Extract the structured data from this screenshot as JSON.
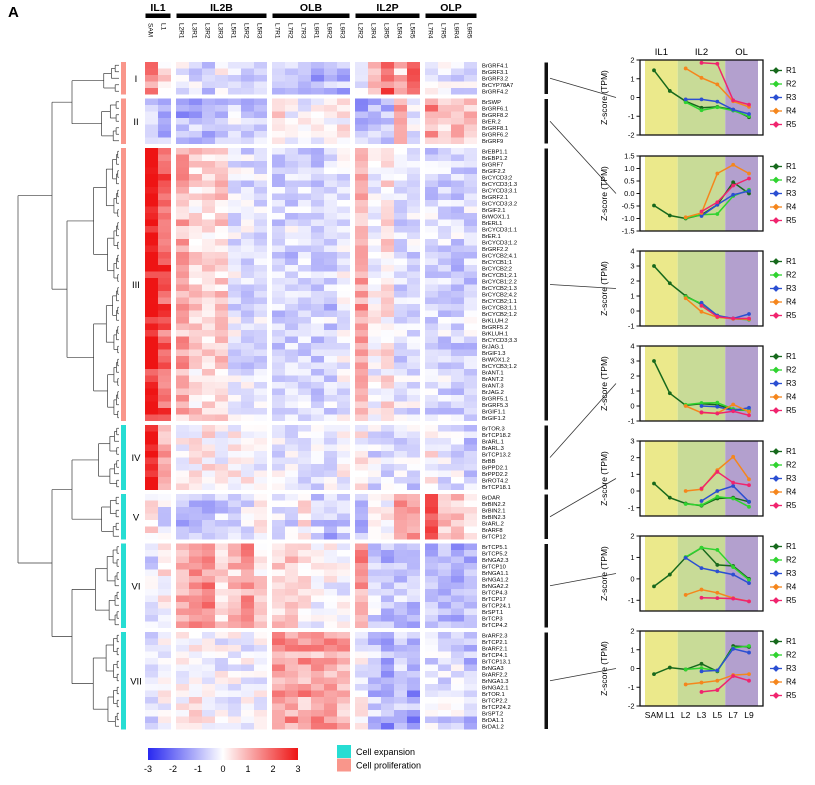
{
  "panel_label": "A",
  "heatmap": {
    "leaf_order": [
      "SAM",
      "L1",
      "L2",
      "L3",
      "L5",
      "L7",
      "L9"
    ],
    "column_groups": [
      {
        "label": "IL1",
        "columns": [
          {
            "id": "SAM",
            "leaf": "SAM",
            "region": "R1"
          },
          {
            "id": "L1",
            "leaf": "L1",
            "region": "R1"
          }
        ]
      },
      {
        "label": "IL2B",
        "columns": [
          {
            "id": "L2R1",
            "leaf": "L2",
            "region": "R1"
          },
          {
            "id": "L3R1",
            "leaf": "L3",
            "region": "R1"
          },
          {
            "id": "L3R2",
            "leaf": "L3",
            "region": "R2"
          },
          {
            "id": "L3R3",
            "leaf": "L3",
            "region": "R3"
          },
          {
            "id": "L5R1",
            "leaf": "L5",
            "region": "R1"
          },
          {
            "id": "L5R2",
            "leaf": "L5",
            "region": "R2"
          },
          {
            "id": "L5R3",
            "leaf": "L5",
            "region": "R3"
          }
        ]
      },
      {
        "label": "OLB",
        "columns": [
          {
            "id": "L7R1",
            "leaf": "L7",
            "region": "R1"
          },
          {
            "id": "L7R2",
            "leaf": "L7",
            "region": "R2"
          },
          {
            "id": "L7R3",
            "leaf": "L7",
            "region": "R3"
          },
          {
            "id": "L9R1",
            "leaf": "L9",
            "region": "R1"
          },
          {
            "id": "L9R2",
            "leaf": "L9",
            "region": "R2"
          },
          {
            "id": "L9R3",
            "leaf": "L9",
            "region": "R3"
          }
        ]
      },
      {
        "label": "IL2P",
        "columns": [
          {
            "id": "L2R2",
            "leaf": "L2",
            "region": "R2"
          },
          {
            "id": "L3R4",
            "leaf": "L3",
            "region": "R4"
          },
          {
            "id": "L3R5",
            "leaf": "L3",
            "region": "R5"
          },
          {
            "id": "L5R4",
            "leaf": "L5",
            "region": "R4"
          },
          {
            "id": "L5R5",
            "leaf": "L5",
            "region": "R5"
          }
        ]
      },
      {
        "label": "OLP",
        "columns": [
          {
            "id": "L7R4",
            "leaf": "L7",
            "region": "R4"
          },
          {
            "id": "L7R5",
            "leaf": "L7",
            "region": "R5"
          },
          {
            "id": "L9R4",
            "leaf": "L9",
            "region": "R4"
          },
          {
            "id": "L9R5",
            "leaf": "L9",
            "region": "R5"
          }
        ]
      }
    ],
    "clusters": [
      {
        "numeral": "I",
        "type": "proliferation",
        "genes": [
          "BrGRF4.1",
          "BrGRF3.1",
          "BrGRF3.2",
          "BrCYP78A7",
          "BrGRF4.2"
        ]
      },
      {
        "numeral": "II",
        "type": "proliferation",
        "genes": [
          "BrSWP",
          "BrGRF6.1",
          "BrGRF8.2",
          "BrER.2",
          "BrGRF8.1",
          "BrGRF6.2",
          "BrGRF9"
        ]
      },
      {
        "numeral": "III",
        "type": "proliferation",
        "genes": [
          "BrEBP1.1",
          "BrEBP1.2",
          "BrGRF7",
          "BrGIF2.2",
          "BrCYCD3;2",
          "BrCYCD3;1.3",
          "BrCYCD3;3.1",
          "BrGRF2.1",
          "BrCYCD3;3.2",
          "BrGIF2.1",
          "BrWOX1.1",
          "BrERL1",
          "BrCYCD3;1.1",
          "BrER.1",
          "BrCYCD3;1.2",
          "BrGRF2.2",
          "BrCYCB2;4.1",
          "BrCYCB1;1",
          "BrCYCB2;2",
          "BrCYCB1;2.1",
          "BrCYCB1;2.2",
          "BrCYCB2;1.3",
          "BrCYCB2;4.2",
          "BrCYCB2;1.1",
          "BrCYCB3;1.1",
          "BrCYCB2;1.2",
          "BrKLUH.2",
          "BrGRF5.2",
          "BrKLUH.1",
          "BrCYCD3;3.3",
          "BrJAG.1",
          "BrGIF1.3",
          "BrWOX1.2",
          "BrCYCB3;1.2",
          "BrANT.1",
          "BrANT.2",
          "BrANT.3",
          "BrJAG.2",
          "BrGRF5.1",
          "BrGRF5.3",
          "BrGIF1.1",
          "BrGIF1.2"
        ]
      },
      {
        "numeral": "IV",
        "type": "expansion",
        "genes": [
          "BrTOR.3",
          "BrTCP18.2",
          "BrARL.1",
          "BrARL.3",
          "BrTCP13.2",
          "BrBB",
          "BrPPD2.1",
          "BrPPD2.2",
          "BrROT4.2",
          "BrTCP18.1"
        ]
      },
      {
        "numeral": "V",
        "type": "expansion",
        "genes": [
          "BrDAR",
          "BrBIN2.2",
          "BrBIN2.1",
          "BrBIN2.3",
          "BrARL.2",
          "BrARF8",
          "BrTCP12"
        ]
      },
      {
        "numeral": "VI",
        "type": "expansion",
        "genes": [
          "BrTCP5.1",
          "BrTCP5.2",
          "BrNGA2.3",
          "BrTCP10",
          "BrNGA1.1",
          "BrNGA1.2",
          "BrNGA2.2",
          "BrTCP4.3",
          "BrTCP17",
          "BrTCP24.1",
          "BrSPT.1",
          "BrTCP3",
          "BrTCP4.2"
        ]
      },
      {
        "numeral": "VII",
        "type": "expansion",
        "genes": [
          "BrARF2.3",
          "BrTCP2.1",
          "BrARF2.1",
          "BrTCP4.1",
          "BrTCP13.1",
          "BrNGA3",
          "BrARF2.2",
          "BrNGA1.3",
          "BrNGA2.1",
          "BrTOR.1",
          "BrTCP2.2",
          "BrTCP24.2",
          "BrSPT.2",
          "BrDA1.1",
          "BrDA1.2"
        ]
      }
    ],
    "cluster_type_colors": {
      "proliferation": "#f9968b",
      "expansion": "#27ddd3"
    },
    "colorbar": {
      "min": -3,
      "max": 3,
      "ticks": [
        -3,
        -2,
        -1,
        0,
        1,
        2,
        3
      ],
      "negative_color": "#2828f0",
      "positive_color": "#ee1414"
    },
    "type_legend": [
      {
        "label": "Cell expansion",
        "color": "#27ddd3"
      },
      {
        "label": "Cell proliferation",
        "color": "#f9968b"
      }
    ]
  },
  "chart_data": {
    "type": "line",
    "note": "Seven Z-score(TPM) line panels, one per heatmap cluster I-VII; x = leaf stage; heatmap cells are cluster profile values per (leaf, region).",
    "x": [
      "SAM",
      "L1",
      "L2",
      "L3",
      "L5",
      "L7",
      "L9"
    ],
    "region_headers": [
      "IL1",
      "IL2",
      "OL"
    ],
    "bands": [
      {
        "label": "IL1",
        "from": "SAM",
        "to": "L1",
        "color": "#ebe98b"
      },
      {
        "label": "IL2",
        "from": "L2",
        "to": "L5",
        "color": "#c8db97"
      },
      {
        "label": "OL",
        "from": "L7",
        "to": "L9",
        "color": "#b3a0ce"
      }
    ],
    "series_colors": {
      "R1": "#17691c",
      "R2": "#2fd32f",
      "R3": "#2b4fd2",
      "R4": "#f5861c",
      "R5": "#f0246e"
    },
    "legend_labels": [
      "R1",
      "R2",
      "R3",
      "R4",
      "R5"
    ],
    "ylabel": "Z-score (TPM)",
    "zscore_plots": [
      {
        "cluster": "I",
        "ylim": [
          -2,
          2
        ],
        "yticks": [
          2,
          1,
          0,
          -1,
          -2
        ],
        "series": [
          {
            "name": "R1",
            "values": [
              1.45,
              0.35,
              -0.2,
              -0.55,
              -0.5,
              -0.65,
              -1.05
            ]
          },
          {
            "name": "R2",
            "values": [
              null,
              null,
              -0.25,
              -0.68,
              -0.52,
              -0.7,
              -1.0
            ]
          },
          {
            "name": "R3",
            "values": [
              null,
              null,
              -0.1,
              -0.1,
              -0.22,
              -0.65,
              -0.88
            ]
          },
          {
            "name": "R4",
            "values": [
              null,
              null,
              1.55,
              1.05,
              0.7,
              -0.2,
              -0.5
            ]
          },
          {
            "name": "R5",
            "values": [
              null,
              null,
              null,
              1.85,
              1.8,
              -0.15,
              -0.38
            ]
          }
        ]
      },
      {
        "cluster": "II",
        "ylim": [
          -1.5,
          1.5
        ],
        "yticks": [
          1.5,
          1.0,
          0.5,
          0.0,
          -0.5,
          -1.0,
          -1.5
        ],
        "series": [
          {
            "name": "R1",
            "values": [
              -0.48,
              -0.88,
              -1.0,
              -0.85,
              -0.45,
              0.45,
              0.0
            ]
          },
          {
            "name": "R2",
            "values": [
              null,
              null,
              -0.98,
              -0.85,
              -0.82,
              -0.1,
              0.15
            ]
          },
          {
            "name": "R3",
            "values": [
              null,
              null,
              null,
              -0.9,
              -0.45,
              -0.05,
              0.1
            ]
          },
          {
            "name": "R4",
            "values": [
              null,
              null,
              -0.95,
              -0.78,
              0.8,
              1.15,
              0.8
            ]
          },
          {
            "name": "R5",
            "values": [
              null,
              null,
              null,
              -0.72,
              -0.35,
              0.32,
              0.6
            ]
          }
        ]
      },
      {
        "cluster": "III",
        "ylim": [
          -1,
          4
        ],
        "yticks": [
          4,
          3,
          2,
          1,
          0,
          -1
        ],
        "series": [
          {
            "name": "R1",
            "values": [
              3.0,
              1.85,
              1.0,
              0.45,
              -0.35,
              -0.5,
              -0.55
            ]
          },
          {
            "name": "R2",
            "values": [
              null,
              null,
              0.95,
              0.5,
              -0.4,
              -0.52,
              -0.58
            ]
          },
          {
            "name": "R3",
            "values": [
              null,
              null,
              null,
              0.55,
              -0.3,
              -0.5,
              -0.2
            ]
          },
          {
            "name": "R4",
            "values": [
              null,
              null,
              0.85,
              -0.05,
              -0.42,
              -0.52,
              -0.55
            ]
          },
          {
            "name": "R5",
            "values": [
              null,
              null,
              null,
              0.35,
              -0.38,
              -0.5,
              -0.5
            ]
          }
        ]
      },
      {
        "cluster": "IV",
        "ylim": [
          -1,
          4
        ],
        "yticks": [
          4,
          3,
          2,
          1,
          0,
          -1
        ],
        "series": [
          {
            "name": "R1",
            "values": [
              3.0,
              0.85,
              0.05,
              0.15,
              0.08,
              -0.25,
              -0.3
            ]
          },
          {
            "name": "R2",
            "values": [
              null,
              null,
              0.08,
              0.2,
              0.22,
              -0.2,
              -0.32
            ]
          },
          {
            "name": "R3",
            "values": [
              null,
              null,
              null,
              0.0,
              -0.05,
              -0.3,
              -0.12
            ]
          },
          {
            "name": "R4",
            "values": [
              null,
              null,
              0.0,
              -0.45,
              -0.48,
              0.1,
              -0.38
            ]
          },
          {
            "name": "R5",
            "values": [
              null,
              null,
              null,
              -0.42,
              -0.5,
              -0.35,
              -0.62
            ]
          }
        ]
      },
      {
        "cluster": "V",
        "ylim": [
          -1.5,
          3
        ],
        "yticks": [
          3,
          2,
          1,
          0,
          -1
        ],
        "series": [
          {
            "name": "R1",
            "values": [
              0.45,
              -0.4,
              -0.75,
              -0.88,
              -0.45,
              -0.4,
              -0.65
            ]
          },
          {
            "name": "R2",
            "values": [
              null,
              null,
              -0.78,
              -0.85,
              -0.35,
              -0.45,
              -0.95
            ]
          },
          {
            "name": "R3",
            "values": [
              null,
              null,
              null,
              -0.6,
              0.0,
              0.3,
              -0.65
            ]
          },
          {
            "name": "R4",
            "values": [
              null,
              null,
              0.0,
              0.1,
              1.25,
              2.05,
              0.7
            ]
          },
          {
            "name": "R5",
            "values": [
              null,
              null,
              null,
              0.15,
              1.15,
              0.5,
              0.35
            ]
          }
        ]
      },
      {
        "cluster": "VI",
        "ylim": [
          -1.5,
          2
        ],
        "yticks": [
          2,
          1,
          0,
          -1
        ],
        "series": [
          {
            "name": "R1",
            "values": [
              -0.35,
              0.2,
              1.0,
              1.45,
              0.65,
              0.6,
              0.0
            ]
          },
          {
            "name": "R2",
            "values": [
              null,
              null,
              1.02,
              1.45,
              1.35,
              0.55,
              -0.05
            ]
          },
          {
            "name": "R3",
            "values": [
              null,
              null,
              0.98,
              0.5,
              0.35,
              0.2,
              -0.2
            ]
          },
          {
            "name": "R4",
            "values": [
              null,
              null,
              -0.75,
              -0.5,
              -0.65,
              -0.9,
              -1.05
            ]
          },
          {
            "name": "R5",
            "values": [
              null,
              null,
              null,
              -0.88,
              -0.9,
              -0.92,
              -1.05
            ]
          }
        ]
      },
      {
        "cluster": "VII",
        "ylim": [
          -2,
          2
        ],
        "yticks": [
          2,
          1,
          0,
          -1,
          -2
        ],
        "series": [
          {
            "name": "R1",
            "values": [
              -0.3,
              0.05,
              -0.05,
              0.25,
              -0.15,
              1.2,
              1.15
            ]
          },
          {
            "name": "R2",
            "values": [
              null,
              null,
              -0.05,
              0.02,
              -0.12,
              1.1,
              1.2
            ]
          },
          {
            "name": "R3",
            "values": [
              null,
              null,
              null,
              -0.15,
              -0.1,
              1.05,
              0.85
            ]
          },
          {
            "name": "R4",
            "values": [
              null,
              null,
              -0.85,
              -0.75,
              -0.65,
              -0.35,
              -0.3
            ]
          },
          {
            "name": "R5",
            "values": [
              null,
              null,
              null,
              -1.25,
              -1.15,
              -0.4,
              -0.65
            ]
          }
        ]
      }
    ]
  }
}
